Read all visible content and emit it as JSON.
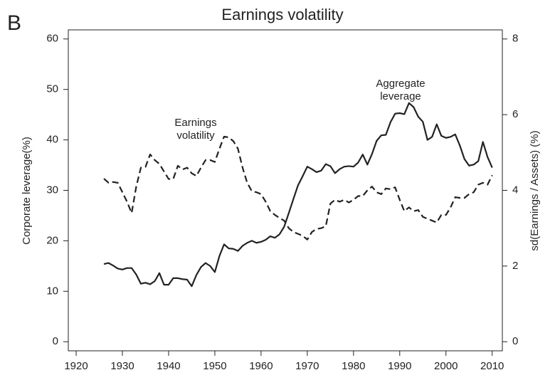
{
  "chart_data": {
    "type": "line",
    "panel_label": "B",
    "title": "Earnings volatility",
    "ylabel": "Corporate leverage(%)",
    "y2label": "sd(Earnings / Assets) (%)",
    "x": [
      1926,
      1927,
      1928,
      1929,
      1930,
      1931,
      1932,
      1933,
      1934,
      1935,
      1936,
      1937,
      1938,
      1939,
      1940,
      1941,
      1942,
      1943,
      1944,
      1945,
      1946,
      1947,
      1948,
      1949,
      1950,
      1951,
      1952,
      1953,
      1954,
      1955,
      1956,
      1957,
      1958,
      1959,
      1960,
      1961,
      1962,
      1963,
      1964,
      1965,
      1966,
      1967,
      1968,
      1969,
      1970,
      1971,
      1972,
      1973,
      1974,
      1975,
      1976,
      1977,
      1978,
      1979,
      1980,
      1981,
      1982,
      1983,
      1984,
      1985,
      1986,
      1987,
      1988,
      1989,
      1990,
      1991,
      1992,
      1993,
      1994,
      1995,
      1996,
      1997,
      1998,
      1999,
      2000,
      2001,
      2002,
      2003,
      2004,
      2005,
      2006,
      2007,
      2008,
      2009,
      2010
    ],
    "series": [
      {
        "name": "Aggregate leverage",
        "color": "#222222",
        "linestyle": "solid",
        "axis": "y",
        "values": [
          15.4,
          15.6,
          15.1,
          14.5,
          14.3,
          14.6,
          14.6,
          13.3,
          11.5,
          11.7,
          11.4,
          12.0,
          13.6,
          11.3,
          11.3,
          12.6,
          12.6,
          12.4,
          12.3,
          11.0,
          13.2,
          14.8,
          15.6,
          15.0,
          13.8,
          17.0,
          19.3,
          18.5,
          18.4,
          18.0,
          19.0,
          19.6,
          20.0,
          19.6,
          19.8,
          20.2,
          20.9,
          20.6,
          21.3,
          22.8,
          25.5,
          28.3,
          31.0,
          32.8,
          34.7,
          34.2,
          33.6,
          33.9,
          35.2,
          34.8,
          33.4,
          34.2,
          34.7,
          34.8,
          34.7,
          35.5,
          37.1,
          35.1,
          37.2,
          39.8,
          40.9,
          41.0,
          43.5,
          45.2,
          45.3,
          45.1,
          47.3,
          46.5,
          44.6,
          43.6,
          40.0,
          40.6,
          43.1,
          40.8,
          40.4,
          40.6,
          41.1,
          38.9,
          36.2,
          34.9,
          35.1,
          35.8,
          39.6,
          36.6,
          34.5
        ]
      },
      {
        "name": "Earnings volatility",
        "color": "#222222",
        "linestyle": "dashed",
        "axis": "y2",
        "values": [
          4.31,
          4.2,
          4.22,
          4.2,
          3.95,
          3.7,
          3.4,
          4.1,
          4.6,
          4.62,
          4.95,
          4.8,
          4.7,
          4.5,
          4.3,
          4.3,
          4.65,
          4.55,
          4.6,
          4.45,
          4.38,
          4.6,
          4.8,
          4.8,
          4.75,
          5.1,
          5.42,
          5.4,
          5.3,
          5.1,
          4.6,
          4.2,
          3.98,
          3.95,
          3.9,
          3.7,
          3.45,
          3.35,
          3.27,
          3.2,
          3.0,
          2.9,
          2.85,
          2.8,
          2.7,
          2.9,
          2.98,
          3.0,
          3.05,
          3.65,
          3.75,
          3.7,
          3.75,
          3.68,
          3.75,
          3.85,
          3.85,
          4.0,
          4.1,
          3.95,
          3.9,
          4.05,
          4.03,
          4.08,
          3.75,
          3.45,
          3.55,
          3.45,
          3.48,
          3.3,
          3.25,
          3.2,
          3.15,
          3.35,
          3.35,
          3.55,
          3.82,
          3.8,
          3.8,
          3.9,
          3.95,
          4.15,
          4.2,
          4.15,
          4.4
        ]
      }
    ],
    "annotations": [
      {
        "lines": [
          "Earnings",
          "volatility"
        ]
      },
      {
        "lines": [
          "Aggregate",
          "leverage"
        ]
      }
    ],
    "xlim": [
      1918.3,
      2012.2
    ],
    "xticks": [
      1920,
      1930,
      1940,
      1950,
      1960,
      1970,
      1980,
      1990,
      2000,
      2010
    ],
    "ylim": [
      -1.8,
      61.8
    ],
    "yticks": [
      0,
      10,
      20,
      30,
      40,
      50,
      60
    ],
    "y2lim": [
      -0.24,
      8.24
    ],
    "y2ticks": [
      0,
      2,
      4,
      6,
      8
    ],
    "grid": false
  }
}
